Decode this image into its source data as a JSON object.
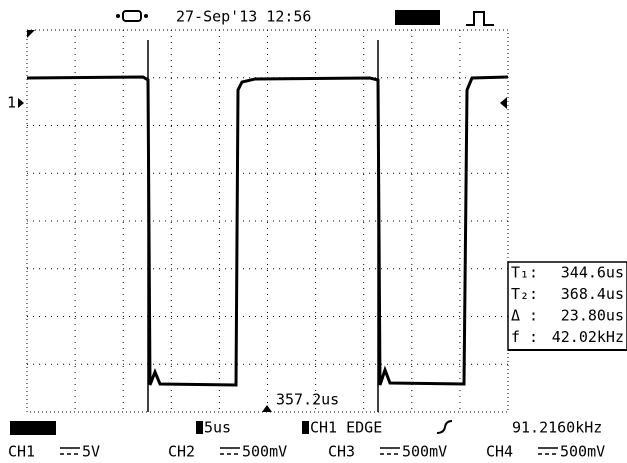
{
  "header": {
    "datetime": "27-Sep'13 12:56"
  },
  "markers": {
    "channel": "1",
    "trigger_position": "357.2us"
  },
  "cursors": [
    {
      "label": "T₁:",
      "value": "344.6us"
    },
    {
      "label": "T₂:",
      "value": "368.4us"
    },
    {
      "label": "Δ :",
      "value": "23.80us"
    },
    {
      "label": "f :",
      "value": "42.02kHz"
    }
  ],
  "status": {
    "timebase": "5us",
    "trigger": "CH1 EDGE",
    "frequency": "91.2160kHz"
  },
  "channels": [
    {
      "name": "CH1",
      "scale": "5V"
    },
    {
      "name": "CH2",
      "scale": "500mV"
    },
    {
      "name": "CH3",
      "scale": "500mV"
    },
    {
      "name": "CH4",
      "scale": "500mV"
    }
  ]
}
